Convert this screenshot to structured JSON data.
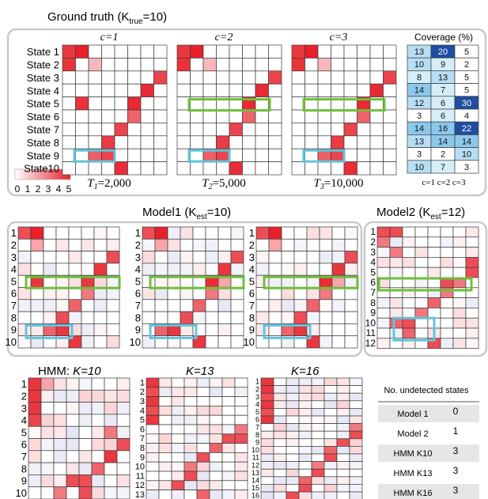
{
  "top": {
    "title": "Ground truth (K",
    "title_sub": "true",
    "title_end": "=10)",
    "cols": [
      "c=1",
      "c=2",
      "c=3"
    ],
    "state_labels": [
      "State 1",
      "State 2",
      "State 3",
      "State 4",
      "State 5",
      "State 6",
      "State 7",
      "State 8",
      "State 9",
      "State10"
    ],
    "colorbar_ticks": [
      "0",
      "1",
      "2",
      "3",
      "4",
      "5"
    ],
    "t_labels": [
      {
        "T": "T",
        "sub": "1",
        "val": "=2,000"
      },
      {
        "T": "T",
        "sub": "2",
        "val": "=5,000"
      },
      {
        "T": "T",
        "sub": "3",
        "val": "=10,000"
      }
    ]
  },
  "coverage": {
    "title": "Coverage (%)",
    "rows": [
      [
        13,
        20,
        5
      ],
      [
        10,
        9,
        2
      ],
      [
        8,
        13,
        5
      ],
      [
        14,
        7,
        5
      ],
      [
        12,
        6,
        30
      ],
      [
        3,
        6,
        4
      ],
      [
        14,
        16,
        22
      ],
      [
        13,
        14,
        14
      ],
      [
        3,
        2,
        10
      ],
      [
        10,
        7,
        3
      ]
    ],
    "footer": "c=1  c=2  c=3"
  },
  "middle": {
    "model1_title": "Model1 (K",
    "model1_sub": "est",
    "model1_end": "=10)",
    "model2_title": "Model2 (K",
    "model2_sub": "est",
    "model2_end": "=12)",
    "model1_labels": [
      "1",
      "2",
      "3",
      "4",
      "5",
      "6",
      "7",
      "8",
      "9",
      "10"
    ],
    "model2_labels": [
      "1",
      "2",
      "3",
      "4",
      "5",
      "6",
      "7",
      "8",
      "9",
      "10",
      "11",
      "12"
    ]
  },
  "bottom": {
    "hmm_prefix": "HMM:  ",
    "k_labels": [
      "K=10",
      "K=13",
      "K=16"
    ],
    "k10_labels": [
      "1",
      "2",
      "3",
      "4",
      "5",
      "6",
      "7",
      "8",
      "9",
      "10"
    ],
    "k13_labels": [
      "1",
      "2",
      "3",
      "4",
      "5",
      "6",
      "7",
      "8",
      "9",
      "10",
      "11",
      "12",
      "13"
    ],
    "k16_labels": [
      "1",
      "2",
      "3",
      "4",
      "5",
      "6",
      "7",
      "8",
      "9",
      "10",
      "11",
      "12",
      "13",
      "14",
      "15",
      "16"
    ]
  },
  "undetected": {
    "header": "No. undetected states",
    "rows": [
      {
        "name": "Model 1",
        "value": "0"
      },
      {
        "name": "Model 2",
        "value": "1"
      },
      {
        "name": "HMM K10",
        "value": "3"
      },
      {
        "name": "HMM K13",
        "value": "3"
      },
      {
        "name": "HMM K16",
        "value": "3"
      }
    ]
  },
  "colors": {
    "red_scale": "#e8202a",
    "blue_scale": "#9a9ad0",
    "green_box": "#6dbf3a",
    "cyan_box": "#5fc4dc",
    "coverage_dark": "#1f4ea0",
    "coverage_light": "#d6eef8"
  }
}
